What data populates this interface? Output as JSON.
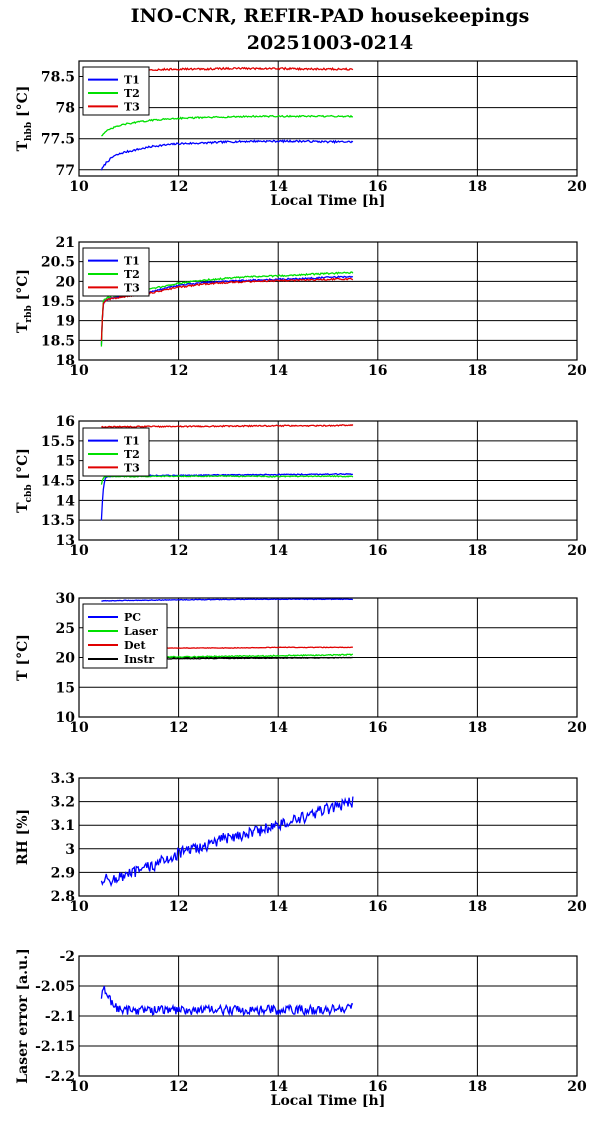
{
  "title_line1": "INO-CNR, REFIR-PAD housekeepings",
  "title_line2": "20251003-0214",
  "chart_data": [
    {
      "type": "line",
      "ylabel": "T",
      "ylabel_sub": "hbb",
      "ylabel_unit": "[°C]",
      "xlabel": "Local Time [h]",
      "xlim": [
        10,
        20
      ],
      "ylim": [
        76.9,
        78.75
      ],
      "xticks": [
        "10",
        "12",
        "14",
        "16",
        "18",
        "20"
      ],
      "yticks": [
        77,
        77.5,
        78,
        78.5
      ],
      "ytick_labels": [
        "77",
        "77.5",
        "78",
        "78.5"
      ],
      "grid": true,
      "legend_position": "top-left",
      "series": [
        {
          "name": "T1",
          "color": "#0000ff",
          "x": [
            10.45,
            10.55,
            10.7,
            10.9,
            11.2,
            11.5,
            12,
            12.5,
            13,
            13.5,
            14,
            14.5,
            15,
            15.5
          ],
          "y": [
            77.0,
            77.12,
            77.22,
            77.28,
            77.33,
            77.38,
            77.42,
            77.43,
            77.45,
            77.46,
            77.46,
            77.46,
            77.45,
            77.45
          ],
          "noise": 0.015
        },
        {
          "name": "T2",
          "color": "#00e000",
          "x": [
            10.45,
            10.55,
            10.7,
            10.9,
            11.2,
            11.5,
            12,
            12.5,
            13,
            13.5,
            14,
            14.5,
            15,
            15.5
          ],
          "y": [
            77.55,
            77.62,
            77.68,
            77.73,
            77.77,
            77.8,
            77.83,
            77.84,
            77.85,
            77.86,
            77.86,
            77.86,
            77.86,
            77.86
          ],
          "noise": 0.012
        },
        {
          "name": "T3",
          "color": "#e00000",
          "x": [
            10.45,
            10.7,
            11,
            11.5,
            12,
            12.5,
            13,
            13.5,
            14,
            14.5,
            15,
            15.5
          ],
          "y": [
            78.55,
            78.58,
            78.6,
            78.61,
            78.62,
            78.62,
            78.63,
            78.63,
            78.63,
            78.62,
            78.62,
            78.62
          ],
          "noise": 0.015
        }
      ]
    },
    {
      "type": "line",
      "ylabel": "T",
      "ylabel_sub": "rbb",
      "ylabel_unit": "[°C]",
      "xlabel": "",
      "xlim": [
        10,
        20
      ],
      "ylim": [
        18,
        21
      ],
      "xticks": [
        "10",
        "12",
        "14",
        "16",
        "18",
        "20"
      ],
      "yticks": [
        18,
        18.5,
        19,
        19.5,
        20,
        20.5,
        21
      ],
      "ytick_labels": [
        "18",
        "18.5",
        "19",
        "19.5",
        "20",
        "20.5",
        "21"
      ],
      "grid": true,
      "legend_position": "top-left",
      "series": [
        {
          "name": "T1",
          "color": "#0000ff",
          "x": [
            10.45,
            10.48,
            10.52,
            10.6,
            11,
            11.5,
            12,
            12.5,
            13,
            13.5,
            14,
            14.5,
            15,
            15.5
          ],
          "y": [
            18.4,
            19.4,
            19.5,
            19.55,
            19.65,
            19.75,
            19.9,
            19.97,
            20.0,
            20.03,
            20.05,
            20.07,
            20.1,
            20.12
          ],
          "noise": 0.02
        },
        {
          "name": "T2",
          "color": "#00e000",
          "x": [
            10.45,
            10.48,
            10.52,
            10.6,
            11,
            11.5,
            12,
            12.5,
            13,
            13.5,
            14,
            14.5,
            15,
            15.5
          ],
          "y": [
            18.35,
            19.45,
            19.55,
            19.6,
            19.7,
            19.82,
            19.95,
            20.03,
            20.08,
            20.12,
            20.14,
            20.17,
            20.2,
            20.22
          ],
          "noise": 0.02
        },
        {
          "name": "T3",
          "color": "#e00000",
          "x": [
            10.45,
            10.48,
            10.52,
            10.6,
            11,
            11.5,
            12,
            12.5,
            13,
            13.5,
            14,
            14.5,
            15,
            15.5
          ],
          "y": [
            18.5,
            19.4,
            19.5,
            19.55,
            19.62,
            19.72,
            19.85,
            19.93,
            19.97,
            20.0,
            20.02,
            20.03,
            20.05,
            20.06
          ],
          "noise": 0.02
        }
      ]
    },
    {
      "type": "line",
      "ylabel": "T",
      "ylabel_sub": "cbb",
      "ylabel_unit": "[°C]",
      "xlabel": "",
      "xlim": [
        10,
        20
      ],
      "ylim": [
        13,
        16
      ],
      "xticks": [
        "10",
        "12",
        "14",
        "16",
        "18",
        "20"
      ],
      "yticks": [
        13,
        13.5,
        14,
        14.5,
        15,
        15.5,
        16
      ],
      "ytick_labels": [
        "13",
        "13.5",
        "14",
        "14.5",
        "15",
        "15.5",
        "16"
      ],
      "grid": true,
      "legend_position": "top-left",
      "series": [
        {
          "name": "T1",
          "color": "#0000ff",
          "x": [
            10.45,
            10.48,
            10.52,
            10.6,
            11,
            12,
            13,
            14,
            15,
            15.5
          ],
          "y": [
            13.5,
            14.2,
            14.55,
            14.6,
            14.62,
            14.63,
            14.64,
            14.65,
            14.66,
            14.66
          ],
          "noise": 0.012
        },
        {
          "name": "T2",
          "color": "#00e000",
          "x": [
            10.45,
            10.48,
            10.52,
            10.6,
            11,
            12,
            13,
            14,
            15,
            15.5
          ],
          "y": [
            14.4,
            14.55,
            14.6,
            14.6,
            14.6,
            14.61,
            14.61,
            14.6,
            14.61,
            14.6
          ],
          "noise": 0.012
        },
        {
          "name": "T3",
          "color": "#e00000",
          "x": [
            10.45,
            10.6,
            11,
            12,
            13,
            14,
            15,
            15.5
          ],
          "y": [
            15.85,
            15.85,
            15.86,
            15.86,
            15.87,
            15.88,
            15.88,
            15.9
          ],
          "noise": 0.015
        }
      ]
    },
    {
      "type": "line",
      "ylabel": "T [°C]",
      "ylabel_sub": "",
      "ylabel_unit": "",
      "xlabel": "",
      "xlim": [
        10,
        20
      ],
      "ylim": [
        10,
        30
      ],
      "xticks": [
        "10",
        "12",
        "14",
        "16",
        "18",
        "20"
      ],
      "yticks": [
        10,
        15,
        20,
        25,
        30
      ],
      "ytick_labels": [
        "10",
        "15",
        "20",
        "25",
        "30"
      ],
      "grid": true,
      "legend_position": "top-left",
      "series": [
        {
          "name": "PC",
          "color": "#0000ff",
          "x": [
            10.45,
            11,
            12,
            13,
            14,
            15,
            15.5
          ],
          "y": [
            29.5,
            29.6,
            29.7,
            29.75,
            29.8,
            29.8,
            29.8
          ],
          "noise": 0.05
        },
        {
          "name": "Laser",
          "color": "#00e000",
          "x": [
            10.45,
            11,
            12,
            13,
            14,
            15,
            15.5
          ],
          "y": [
            19.8,
            20.0,
            20.1,
            20.2,
            20.3,
            20.4,
            20.5
          ],
          "noise": 0.1
        },
        {
          "name": "Det",
          "color": "#e00000",
          "x": [
            10.45,
            11,
            12,
            13,
            14,
            15,
            15.5
          ],
          "y": [
            21.3,
            21.5,
            21.6,
            21.6,
            21.7,
            21.7,
            21.7
          ],
          "noise": 0.05
        },
        {
          "name": "Instr",
          "color": "#000000",
          "x": [
            10.45,
            11,
            12,
            13,
            14,
            15,
            15.5
          ],
          "y": [
            19.6,
            19.7,
            19.8,
            19.85,
            19.9,
            19.95,
            20.0
          ],
          "noise": 0.05
        }
      ]
    },
    {
      "type": "line",
      "ylabel": "RH [%]",
      "ylabel_sub": "",
      "ylabel_unit": "",
      "xlabel": "",
      "xlim": [
        10,
        20
      ],
      "ylim": [
        2.8,
        3.3
      ],
      "xticks": [
        "10",
        "12",
        "14",
        "16",
        "18",
        "20"
      ],
      "yticks": [
        2.8,
        2.9,
        3,
        3.1,
        3.2,
        3.3
      ],
      "ytick_labels": [
        "2.8",
        "2.9",
        "3",
        "3.1",
        "3.2",
        "3.3"
      ],
      "grid": true,
      "legend_position": "",
      "series": [
        {
          "name": "",
          "color": "#0000ff",
          "x": [
            10.45,
            10.7,
            11,
            11.5,
            12,
            12.5,
            13,
            13.5,
            14,
            14.5,
            15,
            15.5
          ],
          "y": [
            2.87,
            2.87,
            2.89,
            2.93,
            2.98,
            3.01,
            3.05,
            3.07,
            3.1,
            3.13,
            3.17,
            3.2
          ],
          "noise": 0.025
        }
      ]
    },
    {
      "type": "line",
      "ylabel": "Laser error [a.u.]",
      "ylabel_sub": "",
      "ylabel_unit": "",
      "xlabel": "Local Time [h]",
      "xlim": [
        10,
        20
      ],
      "ylim": [
        -2.2,
        -2.0
      ],
      "xticks": [
        "10",
        "12",
        "14",
        "16",
        "18",
        "20"
      ],
      "yticks": [
        -2.2,
        -2.15,
        -2.1,
        -2.05,
        -2.0
      ],
      "ytick_labels": [
        "-2.2",
        "-2.15",
        "-2.1",
        "-2.05",
        "-2"
      ],
      "grid": true,
      "legend_position": "",
      "series": [
        {
          "name": "",
          "color": "#0000ff",
          "x": [
            10.45,
            10.5,
            10.6,
            10.8,
            11,
            12,
            13,
            14,
            15,
            15.5
          ],
          "y": [
            -2.07,
            -2.055,
            -2.07,
            -2.09,
            -2.09,
            -2.09,
            -2.09,
            -2.09,
            -2.09,
            -2.085
          ],
          "noise": 0.008
        }
      ]
    }
  ]
}
